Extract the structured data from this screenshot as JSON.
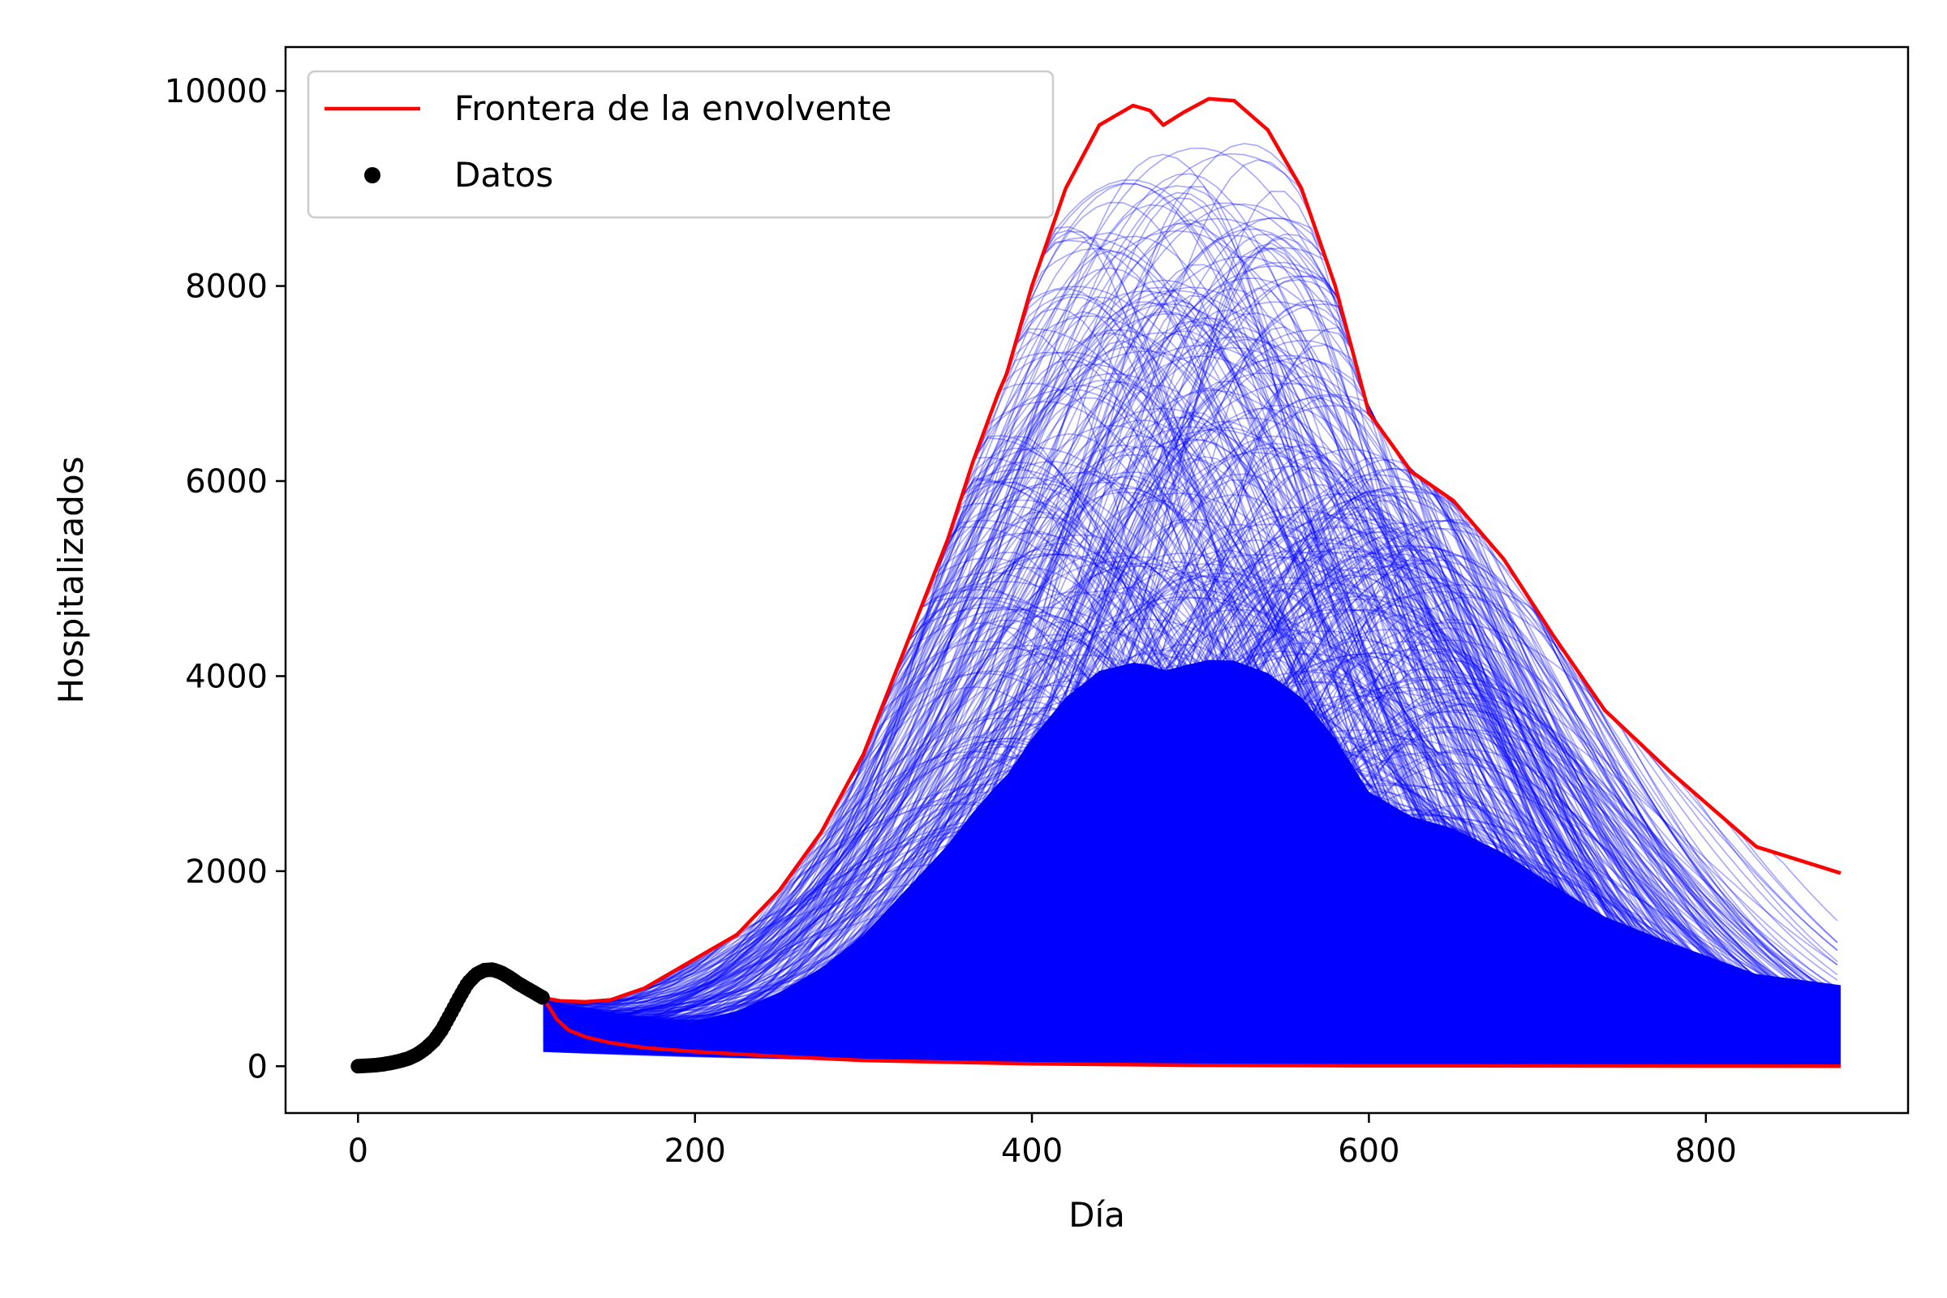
{
  "chart_data": {
    "type": "line",
    "title": "",
    "xlabel": "Día",
    "ylabel": "Hospitalizados",
    "xlim": [
      -43,
      920
    ],
    "ylim": [
      -480,
      10450
    ],
    "xticks": [
      "0",
      "200",
      "400",
      "600",
      "800"
    ],
    "yticks": [
      "0",
      "2000",
      "4000",
      "6000",
      "8000",
      "10000"
    ],
    "grid": false,
    "legend": {
      "placement": "top-left",
      "entries": [
        {
          "label": "Frontera de la envolvente",
          "marker": "line",
          "color": "#ff0000"
        },
        {
          "label": "Datos",
          "marker": "dot",
          "color": "#000000"
        }
      ]
    },
    "series": [
      {
        "name": "Frontera de la envolvente",
        "role": "upper",
        "color": "#ff0000",
        "x": [
          110,
          120,
          135,
          150,
          170,
          190,
          210,
          225,
          250,
          275,
          300,
          325,
          350,
          365,
          380,
          385,
          400,
          420,
          440,
          460,
          470,
          478,
          490,
          505,
          520,
          540,
          560,
          580,
          600,
          625,
          650,
          680,
          710,
          740,
          780,
          830,
          880
        ],
        "y": [
          700,
          670,
          660,
          680,
          800,
          1000,
          1200,
          1350,
          1800,
          2400,
          3200,
          4300,
          5400,
          6200,
          6900,
          7100,
          8000,
          9000,
          9650,
          9850,
          9800,
          9650,
          9780,
          9920,
          9900,
          9600,
          9000,
          8000,
          6700,
          6100,
          5800,
          5200,
          4400,
          3650,
          3000,
          2250,
          1980
        ]
      },
      {
        "name": "Frontera de la envolvente",
        "role": "lower",
        "color": "#ff0000",
        "x": [
          110,
          118,
          125,
          135,
          150,
          170,
          200,
          250,
          300,
          400,
          500,
          600,
          700,
          800,
          880
        ],
        "y": [
          700,
          480,
          370,
          300,
          240,
          190,
          150,
          100,
          60,
          25,
          10,
          5,
          3,
          2,
          1
        ]
      },
      {
        "name": "Datos",
        "role": "data",
        "color": "#000000",
        "x": [
          0,
          5,
          10,
          15,
          20,
          25,
          30,
          35,
          40,
          45,
          50,
          55,
          60,
          65,
          70,
          75,
          80,
          85,
          90,
          95,
          100,
          105,
          110
        ],
        "y": [
          0,
          5,
          10,
          20,
          35,
          55,
          80,
          120,
          180,
          260,
          380,
          540,
          700,
          850,
          940,
          985,
          990,
          960,
          910,
          850,
          800,
          750,
          700
        ]
      }
    ],
    "ensemble": {
      "color": "#0000ff",
      "x_range": [
        110,
        880
      ]
    }
  }
}
